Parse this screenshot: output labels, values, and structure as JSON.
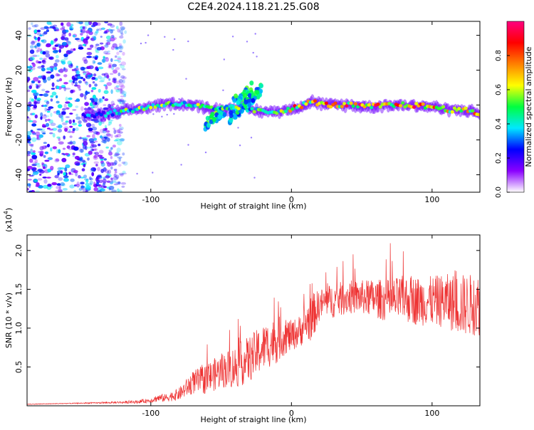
{
  "chart_data": [
    {
      "type": "heatmap",
      "title": "C2E4.2024.118.21.25.G08",
      "xlabel": "Height of straight line (km)",
      "ylabel": "Frequency (Hz)",
      "xlim": [
        -188,
        134
      ],
      "ylim": [
        -50,
        48
      ],
      "x_ticks": [
        -100,
        0,
        100
      ],
      "x_tick_labels": [
        "-100",
        "0",
        "100"
      ],
      "y_ticks": [
        40,
        20,
        0,
        -20,
        -40
      ],
      "y_tick_labels": [
        "40",
        "20",
        "0",
        "-20",
        "-40"
      ],
      "grid": false,
      "colorbar": {
        "label": "Normalized spectral amplitude",
        "range": [
          0,
          1
        ],
        "ticks": [
          0.0,
          0.2,
          0.4,
          0.6,
          0.8
        ],
        "tick_labels": [
          "0.0",
          "0.2",
          "0.4",
          "0.6",
          "0.8"
        ],
        "colors": [
          "#ffffff",
          "#8a00ff",
          "#0000ff",
          "#00e8ff",
          "#00ff40",
          "#ffff00",
          "#ff8000",
          "#ff0000",
          "#ff0080"
        ]
      },
      "noise_region": {
        "x_range": [
          -188,
          -118
        ],
        "y_range": [
          -50,
          48
        ],
        "amplitude": 0.35
      },
      "trace": [
        {
          "x": -148,
          "y": -6,
          "amp": 0.3
        },
        {
          "x": -130,
          "y": -5,
          "amp": 0.35
        },
        {
          "x": -115,
          "y": -3,
          "amp": 0.5
        },
        {
          "x": -100,
          "y": -1,
          "amp": 0.55
        },
        {
          "x": -85,
          "y": 1,
          "amp": 0.5
        },
        {
          "x": -70,
          "y": 0,
          "amp": 0.5
        },
        {
          "x": -58,
          "y": -2,
          "amp": 0.5
        },
        {
          "x": -48,
          "y": -3,
          "amp": 0.45
        },
        {
          "x": -38,
          "y": -1,
          "amp": 0.5
        },
        {
          "x": -28,
          "y": -3,
          "amp": 0.45
        },
        {
          "x": -15,
          "y": -4,
          "amp": 0.5
        },
        {
          "x": -5,
          "y": -3,
          "amp": 0.6
        },
        {
          "x": 5,
          "y": -1,
          "amp": 0.7
        },
        {
          "x": 15,
          "y": 2,
          "amp": 0.7
        },
        {
          "x": 25,
          "y": 0,
          "amp": 0.75
        },
        {
          "x": 40,
          "y": 0,
          "amp": 0.75
        },
        {
          "x": 55,
          "y": -1,
          "amp": 0.75
        },
        {
          "x": 70,
          "y": 0,
          "amp": 0.75
        },
        {
          "x": 85,
          "y": 0,
          "amp": 0.75
        },
        {
          "x": 100,
          "y": -1,
          "amp": 0.75
        },
        {
          "x": 115,
          "y": -3,
          "amp": 0.7
        },
        {
          "x": 125,
          "y": -3,
          "amp": 0.7
        },
        {
          "x": 134,
          "y": -5,
          "amp": 0.6
        }
      ],
      "streaks": [
        {
          "x": [
            -62,
            -28
          ],
          "y": [
            -12,
            10
          ],
          "amp": 0.45
        },
        {
          "x": [
            -44,
            -20
          ],
          "y": [
            -8,
            10
          ],
          "amp": 0.4
        }
      ]
    },
    {
      "type": "line",
      "xlabel": "Height of straight line (km)",
      "ylabel": "SNR (10 * v/v)",
      "y_multiplier": "(x10",
      "y_multiplier_exp": "4",
      "y_multiplier_close": ")",
      "xlim": [
        -188,
        134
      ],
      "ylim": [
        0,
        2.2
      ],
      "x_ticks": [
        -100,
        0,
        100
      ],
      "x_tick_labels": [
        "-100",
        "0",
        "100"
      ],
      "y_ticks": [
        0.5,
        1.0,
        1.5,
        2.0
      ],
      "y_tick_labels": [
        "0.5",
        "1.0",
        "1.5",
        "2.0"
      ],
      "grid": false,
      "series": [
        {
          "color": "#ee3333",
          "x": [
            -188,
            -160,
            -130,
            -110,
            -100,
            -95,
            -90,
            -80,
            -70,
            -60,
            -50,
            -40,
            -30,
            -20,
            -15,
            -10,
            -5,
            0,
            5,
            10,
            15,
            20,
            25,
            30,
            40,
            50,
            60,
            70,
            80,
            90,
            100,
            110,
            120,
            134
          ],
          "y": [
            0.02,
            0.03,
            0.04,
            0.05,
            0.07,
            0.1,
            0.1,
            0.15,
            0.3,
            0.35,
            0.45,
            0.5,
            0.6,
            0.75,
            0.8,
            0.85,
            0.9,
            0.9,
            0.95,
            1.05,
            1.15,
            1.3,
            1.35,
            1.35,
            1.4,
            1.4,
            1.38,
            1.35,
            1.38,
            1.35,
            1.35,
            1.35,
            1.3,
            1.3
          ],
          "noise": [
            0.005,
            0.005,
            0.01,
            0.02,
            0.03,
            0.05,
            0.05,
            0.08,
            0.15,
            0.2,
            0.22,
            0.28,
            0.3,
            0.3,
            0.3,
            0.3,
            0.25,
            0.2,
            0.2,
            0.25,
            0.3,
            0.2,
            0.2,
            0.22,
            0.22,
            0.22,
            0.25,
            0.28,
            0.3,
            0.32,
            0.32,
            0.35,
            0.4,
            0.4
          ]
        }
      ]
    }
  ]
}
